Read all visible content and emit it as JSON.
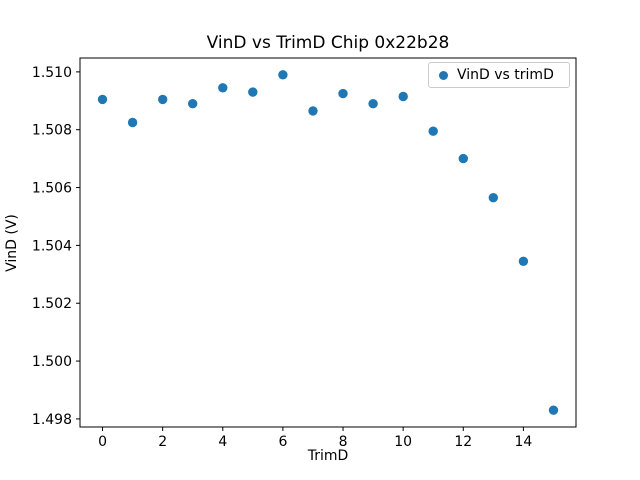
{
  "chart_data": {
    "type": "scatter",
    "title": "VinD vs TrimD Chip 0x22b28",
    "xlabel": "TrimD",
    "ylabel": "VinD (V)",
    "legend_label": "VinD vs trimD",
    "legend_position": "upper right",
    "marker_color": "#1f77b4",
    "grid": false,
    "x": [
      0,
      1,
      2,
      3,
      4,
      5,
      6,
      7,
      8,
      9,
      10,
      11,
      12,
      13,
      14,
      15
    ],
    "y": [
      1.50905,
      1.50825,
      1.50905,
      1.5089,
      1.50945,
      1.5093,
      1.5099,
      1.50865,
      1.50925,
      1.5089,
      1.50915,
      1.50795,
      1.507,
      1.50565,
      1.50345,
      1.4983
    ],
    "xticks": [
      0,
      2,
      4,
      6,
      8,
      10,
      12,
      14
    ],
    "yticks": [
      1.498,
      1.5,
      1.502,
      1.504,
      1.506,
      1.508,
      1.51
    ],
    "xlim": [
      -0.75,
      15.75
    ],
    "ylim": [
      1.49772,
      1.51048
    ]
  }
}
